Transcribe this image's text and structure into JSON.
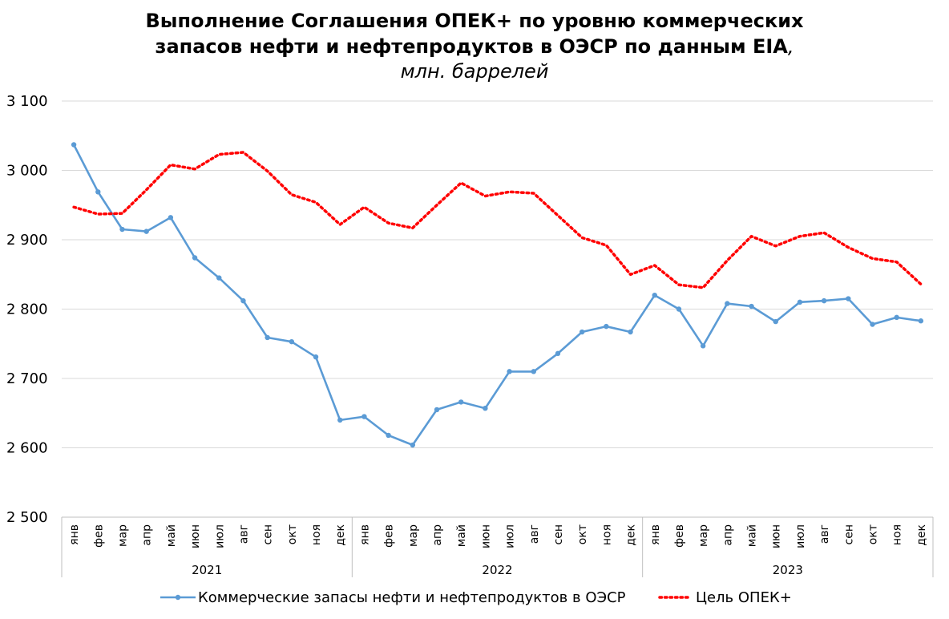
{
  "title": {
    "line1": "Выполнение Соглашения ОПЕК+ по уровню коммерческих",
    "line2": "запасов нефти и нефтепродуктов в ОЭСР по данным EIA",
    "line2_suffix": ",",
    "unit": "млн. баррелей"
  },
  "chart_data": {
    "type": "line",
    "title": "Выполнение Соглашения ОПЕК+ по уровню коммерческих запасов нефти и нефтепродуктов в ОЭСР по данным EIA, млн. баррелей",
    "xlabel": "",
    "ylabel": "",
    "ylim": [
      2500,
      3100
    ],
    "yticks": [
      2500,
      2600,
      2700,
      2800,
      2900,
      3000,
      3100
    ],
    "ytick_labels": [
      "2 500",
      "2 600",
      "2 700",
      "2 800",
      "2 900",
      "3 000",
      "3 100"
    ],
    "grid": true,
    "legend_position": "bottom",
    "months": [
      "янв",
      "фев",
      "мар",
      "апр",
      "май",
      "июн",
      "июл",
      "авг",
      "сен",
      "окт",
      "ноя",
      "дек",
      "янв",
      "фев",
      "мар",
      "апр",
      "май",
      "июн",
      "июл",
      "авг",
      "сен",
      "окт",
      "ноя",
      "дек",
      "янв",
      "фев",
      "мар",
      "апр",
      "май",
      "июн",
      "июл",
      "авг",
      "сен",
      "окт",
      "ноя",
      "дек"
    ],
    "years": [
      "2021",
      "2022",
      "2023"
    ],
    "series": [
      {
        "name": "Коммерческие запасы нефти и нефтепродуктов в ОЭСР",
        "color": "#5b9bd5",
        "style": "solid-markers",
        "values": [
          3037,
          2969,
          2915,
          2912,
          2932,
          2874,
          2845,
          2812,
          2759,
          2753,
          2731,
          2640,
          2645,
          2618,
          2604,
          2655,
          2666,
          2657,
          2710,
          2710,
          2736,
          2767,
          2775,
          2767,
          2820,
          2800,
          2747,
          2808,
          2804,
          2782,
          2810,
          2812,
          2815,
          2778,
          2788,
          2783
        ]
      },
      {
        "name": "Цель ОПЕК+",
        "color": "#ff0000",
        "style": "dotted",
        "values": [
          2947,
          2937,
          2938,
          2972,
          3008,
          3002,
          3023,
          3026,
          2999,
          2965,
          2954,
          2922,
          2947,
          2924,
          2917,
          2950,
          2982,
          2963,
          2969,
          2967,
          2935,
          2903,
          2892,
          2850,
          2863,
          2835,
          2831,
          2870,
          2905,
          2891,
          2905,
          2910,
          2889,
          2873,
          2868,
          2836
        ]
      }
    ]
  }
}
